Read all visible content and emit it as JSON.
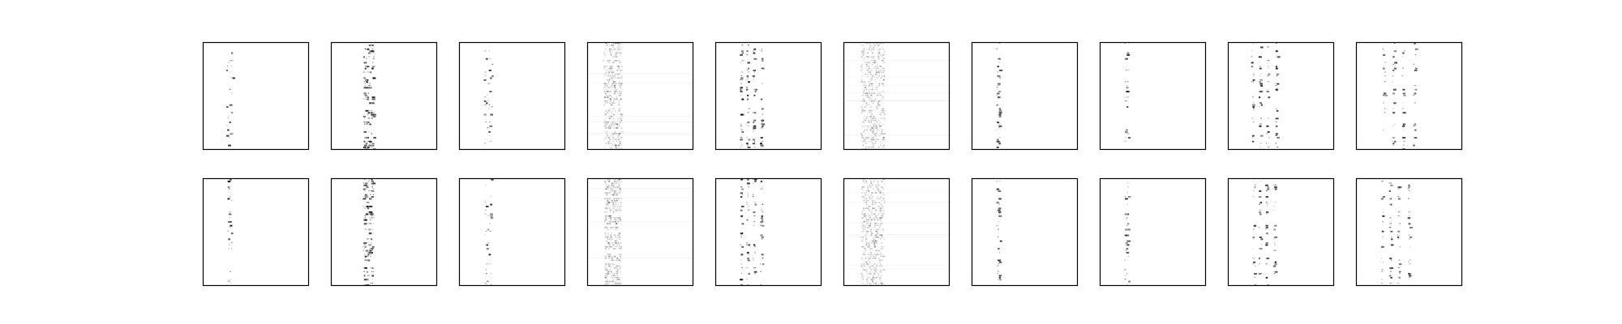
{
  "figure": {
    "rows": 2,
    "cols": 10,
    "background": "#ffffff",
    "frame_color": "#000000",
    "mark_color": "#000000"
  },
  "chart_data": {
    "type": "heatmap",
    "grid": [
      2,
      10
    ],
    "axes_visible": false,
    "ticks": false,
    "title": "",
    "xlabel": "",
    "ylabel": "",
    "colormap": "grayscale-inverted",
    "panels": [
      {
        "row": 0,
        "col": 0,
        "pattern": "sparse-column",
        "column_center": 0.25,
        "column_spread": 0.03,
        "density": 0.45,
        "intensity": 0.85
      },
      {
        "row": 0,
        "col": 1,
        "pattern": "cluster-column",
        "column_center": 0.35,
        "column_spread": 0.05,
        "density": 0.65,
        "intensity": 0.8
      },
      {
        "row": 0,
        "col": 2,
        "pattern": "sparse-column",
        "column_center": 0.27,
        "column_spread": 0.04,
        "density": 0.5,
        "intensity": 0.75
      },
      {
        "row": 0,
        "col": 3,
        "pattern": "diffuse-band",
        "column_center": 0.22,
        "column_spread": 0.08,
        "density": 0.9,
        "intensity": 0.55
      },
      {
        "row": 0,
        "col": 4,
        "pattern": "multi-column",
        "column_center": 0.3,
        "column_spread": 0.06,
        "density": 0.6,
        "intensity": 0.8
      },
      {
        "row": 0,
        "col": 5,
        "pattern": "diffuse-band",
        "column_center": 0.25,
        "column_spread": 0.1,
        "density": 1.0,
        "intensity": 0.5
      },
      {
        "row": 0,
        "col": 6,
        "pattern": "sparse-column",
        "column_center": 0.25,
        "column_spread": 0.02,
        "density": 0.55,
        "intensity": 0.7
      },
      {
        "row": 0,
        "col": 7,
        "pattern": "sparse-column",
        "column_center": 0.25,
        "column_spread": 0.02,
        "density": 0.35,
        "intensity": 0.75
      },
      {
        "row": 0,
        "col": 8,
        "pattern": "multi-column",
        "column_center": 0.3,
        "column_spread": 0.07,
        "density": 0.55,
        "intensity": 0.85
      },
      {
        "row": 0,
        "col": 9,
        "pattern": "multi-column",
        "column_center": 0.35,
        "column_spread": 0.09,
        "density": 0.6,
        "intensity": 0.7
      },
      {
        "row": 1,
        "col": 0,
        "pattern": "sparse-column",
        "column_center": 0.25,
        "column_spread": 0.02,
        "density": 0.5,
        "intensity": 0.9
      },
      {
        "row": 1,
        "col": 1,
        "pattern": "cluster-column",
        "column_center": 0.35,
        "column_spread": 0.05,
        "density": 0.65,
        "intensity": 0.85
      },
      {
        "row": 1,
        "col": 2,
        "pattern": "sparse-column",
        "column_center": 0.27,
        "column_spread": 0.03,
        "density": 0.5,
        "intensity": 0.8
      },
      {
        "row": 1,
        "col": 3,
        "pattern": "diffuse-band",
        "column_center": 0.22,
        "column_spread": 0.07,
        "density": 0.9,
        "intensity": 0.55
      },
      {
        "row": 1,
        "col": 4,
        "pattern": "multi-column",
        "column_center": 0.3,
        "column_spread": 0.06,
        "density": 0.6,
        "intensity": 0.85
      },
      {
        "row": 1,
        "col": 5,
        "pattern": "diffuse-band",
        "column_center": 0.25,
        "column_spread": 0.1,
        "density": 1.0,
        "intensity": 0.55
      },
      {
        "row": 1,
        "col": 6,
        "pattern": "sparse-column",
        "column_center": 0.25,
        "column_spread": 0.02,
        "density": 0.6,
        "intensity": 0.8
      },
      {
        "row": 1,
        "col": 7,
        "pattern": "sparse-column",
        "column_center": 0.25,
        "column_spread": 0.02,
        "density": 0.45,
        "intensity": 0.8
      },
      {
        "row": 1,
        "col": 8,
        "pattern": "multi-column",
        "column_center": 0.3,
        "column_spread": 0.06,
        "density": 0.5,
        "intensity": 0.85
      },
      {
        "row": 1,
        "col": 9,
        "pattern": "multi-column",
        "column_center": 0.32,
        "column_spread": 0.08,
        "density": 0.5,
        "intensity": 0.75
      }
    ]
  }
}
